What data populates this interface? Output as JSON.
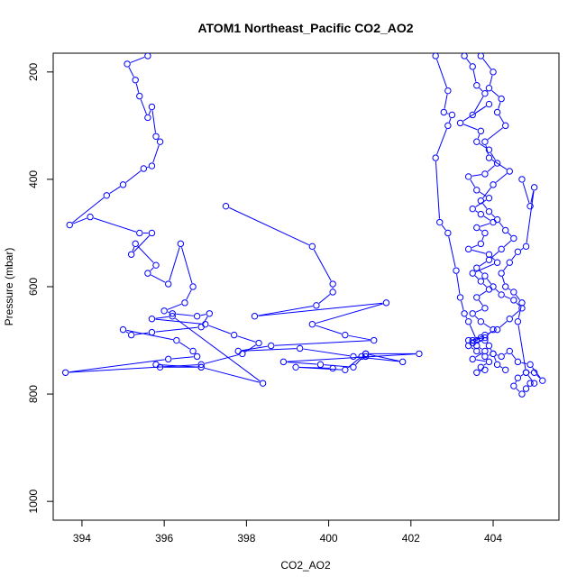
{
  "chart_data": {
    "type": "line",
    "title": "ATOM1 Northeast_Pacific CO2_AO2",
    "xlabel": "CO2_AO2",
    "ylabel": "Pressure (mbar)",
    "xlim": [
      393.3,
      405.6
    ],
    "ylim": [
      1035,
      165
    ],
    "y_reversed": true,
    "xticks": [
      394,
      396,
      398,
      400,
      402,
      404
    ],
    "yticks": [
      200,
      400,
      600,
      800,
      1000
    ],
    "grid": false,
    "legend": "none",
    "series_color": "#0000ff",
    "marker": "open-circle",
    "series": [
      {
        "x": [
          395.6,
          395.1,
          395.3,
          395.4,
          395.6,
          395.7,
          395.8,
          395.9,
          395.7,
          395.5,
          395.0,
          394.6,
          393.7,
          394.2,
          395.4,
          395.7,
          395.2,
          395.3,
          395.8,
          395.6,
          396.1,
          396.4,
          396.7,
          396.5,
          396.0,
          396.2,
          396.8,
          397.1,
          396.9,
          395.7,
          395.2,
          395.0,
          396.3,
          396.7,
          396.8,
          396.1,
          393.6,
          396.9,
          397.9,
          398.3,
          397.7,
          397.0,
          395.7,
          396.2,
          398.4,
          396.9,
          395.9,
          395.8,
          396.9
        ],
        "y": [
          170,
          185,
          215,
          245,
          285,
          265,
          320,
          330,
          375,
          380,
          410,
          430,
          485,
          470,
          500,
          500,
          540,
          520,
          560,
          575,
          595,
          520,
          600,
          630,
          645,
          650,
          655,
          650,
          675,
          685,
          690,
          680,
          700,
          720,
          730,
          735,
          760,
          745,
          725,
          705,
          690,
          670,
          660,
          655,
          780,
          750,
          750,
          745,
          750
        ]
      },
      {
        "x": [
          397.5,
          399.6,
          400.1,
          400.1,
          399.7,
          398.2,
          401.4,
          399.6,
          400.4,
          401.1,
          398.6,
          397.8,
          399.3,
          400.6,
          401.8,
          400.9,
          402.2,
          398.9,
          399.8,
          400.6,
          400.9,
          400.9,
          400.8,
          400.4,
          399.2,
          400.1
        ],
        "y": [
          450,
          525,
          595,
          610,
          635,
          655,
          630,
          670,
          690,
          700,
          710,
          720,
          715,
          730,
          740,
          725,
          725,
          740,
          745,
          750,
          725,
          730,
          730,
          755,
          750,
          752
        ]
      },
      {
        "x": [
          402.6,
          402.9,
          402.8,
          403.0,
          402.9,
          402.6,
          402.7,
          402.9,
          403.1,
          403.2,
          403.3,
          403.4,
          403.6,
          403.7,
          403.5,
          403.8,
          403.9,
          404.0,
          404.2,
          404.4,
          404.6,
          404.9,
          405.2,
          405.0,
          404.8,
          404.6,
          404.5,
          404.7,
          404.8,
          404.9,
          405.0,
          404.8,
          404.6,
          404.7,
          404.5,
          404.3,
          404.2,
          404.4,
          404.6,
          404.8,
          405.0,
          404.9,
          404.7
        ],
        "y": [
          170,
          235,
          275,
          280,
          300,
          360,
          480,
          500,
          570,
          620,
          650,
          665,
          700,
          695,
          705,
          700,
          710,
          725,
          730,
          720,
          740,
          745,
          775,
          760,
          760,
          770,
          785,
          800,
          790,
          780,
          780,
          760,
          665,
          630,
          610,
          600,
          575,
          555,
          535,
          525,
          415,
          450,
          400
        ]
      },
      {
        "x": [
          403.3,
          403.5,
          403.6,
          403.8,
          403.5,
          403.9,
          403.2,
          403.7,
          403.6,
          403.9,
          404.1,
          403.8,
          403.4,
          403.6,
          403.9,
          403.5,
          403.7,
          404.0,
          403.6,
          403.8,
          403.7,
          403.4,
          403.9,
          404.1,
          403.5,
          403.7,
          403.9,
          403.6,
          403.8,
          403.5,
          403.7,
          404.0,
          403.8,
          403.4,
          403.6,
          403.8,
          403.5,
          403.9,
          403.7,
          403.6,
          403.8
        ],
        "y": [
          170,
          190,
          225,
          240,
          280,
          260,
          295,
          310,
          330,
          345,
          370,
          390,
          395,
          420,
          435,
          455,
          465,
          480,
          490,
          500,
          520,
          530,
          540,
          555,
          575,
          590,
          605,
          620,
          640,
          650,
          665,
          680,
          695,
          700,
          710,
          720,
          735,
          740,
          750,
          760,
          755
        ]
      },
      {
        "x": [
          403.7,
          404.0,
          403.9,
          404.2,
          404.1,
          404.3,
          403.8,
          403.9,
          404.4,
          404.0,
          403.7,
          403.9,
          404.1,
          404.3,
          404.5,
          404.2,
          403.9,
          403.6,
          403.8,
          404.0,
          404.2,
          404.5,
          404.7,
          404.4,
          404.1,
          403.8,
          403.5,
          403.4,
          403.6,
          403.8,
          404.0,
          404.1,
          404.3
        ],
        "y": [
          170,
          200,
          230,
          250,
          275,
          300,
          330,
          360,
          385,
          410,
          440,
          460,
          475,
          495,
          510,
          530,
          550,
          565,
          580,
          600,
          615,
          625,
          640,
          660,
          680,
          690,
          700,
          710,
          720,
          730,
          725,
          745,
          755
        ]
      }
    ]
  }
}
